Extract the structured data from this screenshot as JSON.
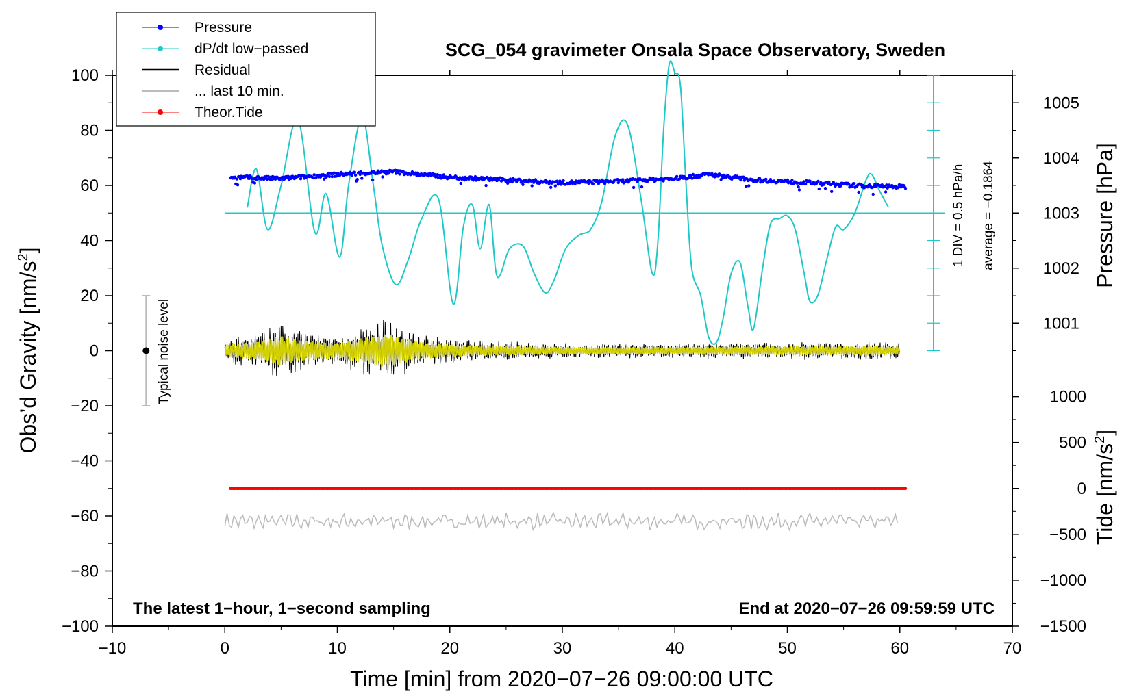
{
  "chart_data": {
    "type": "line",
    "title": "SCG_054 gravimeter Onsala Space Observatory, Sweden",
    "xlabel": "Time [min] from 2020−07−26 09:00:00 UTC",
    "ylabel_left": "Obs’d Gravity [nm/s",
    "ylabel_left_sup": "2",
    "ylabel_left_end": "]",
    "ylabel_right_pressure": "Pressure [hPa]",
    "ylabel_right_tide": "Tide [nm/s",
    "ylabel_right_tide_sup": "2",
    "ylabel_right_tide_end": "]",
    "xlim": [
      -10,
      70
    ],
    "ylim": [
      -100,
      100
    ],
    "x_ticks": [
      -10,
      0,
      10,
      20,
      30,
      40,
      50,
      60,
      70
    ],
    "x_tick_labels": [
      "−10",
      "0",
      "10",
      "20",
      "30",
      "40",
      "50",
      "60",
      "70"
    ],
    "y_ticks": [
      -100,
      -80,
      -60,
      -40,
      -20,
      0,
      20,
      40,
      60,
      80,
      100
    ],
    "y_tick_labels": [
      "−100",
      "−80",
      "−60",
      "−40",
      "−20",
      "0",
      "20",
      "40",
      "60",
      "80",
      "100"
    ],
    "pressure_axis": {
      "ticks": [
        1001,
        1002,
        1003,
        1004,
        1005
      ],
      "tick_labels": [
        "1001",
        "1002",
        "1003",
        "1004",
        "1005"
      ],
      "anchor_value": 1003,
      "anchor_gravity": 50,
      "hpa_per_gravity_unit": 0.05
    },
    "tide_axis": {
      "ticks": [
        -1500,
        -1000,
        -500,
        0,
        500,
        1000
      ],
      "tick_labels": [
        "−1500",
        "−1000",
        "−500",
        "0",
        "500",
        "1000"
      ],
      "anchor_value": 0,
      "anchor_gravity": -50,
      "nms2_per_gravity_unit": 30
    },
    "legend": [
      {
        "label": "Pressure",
        "color": "#0000ff",
        "marker": "dot"
      },
      {
        "label": "dP/dt low−passed",
        "color": "#20c8c8",
        "marker": "dot"
      },
      {
        "label": "Residual",
        "color": "#000000",
        "marker": "none"
      },
      {
        "label": "... last 10 min.",
        "color": "#bbbbbb",
        "marker": "none"
      },
      {
        "label": "Theor.Tide",
        "color": "#ff0000",
        "marker": "dot"
      }
    ],
    "series": [
      {
        "name": "dP/dt low-passed",
        "color": "#20c8c8",
        "x": [
          2,
          2.8,
          3.8,
          5,
          6.5,
          8,
          9,
          10.2,
          11,
          12.2,
          13.2,
          14,
          15.2,
          16.3,
          17.5,
          19,
          20.3,
          21.2,
          22,
          22.7,
          23.5,
          24.2,
          25.3,
          26.5,
          27.5,
          28.5,
          29.3,
          30.3,
          31.5,
          32.5,
          33.5,
          34.7,
          35.8,
          37,
          38,
          38.5,
          39,
          39.5,
          40,
          40.5,
          41,
          41.5,
          42.3,
          43,
          43.7,
          44.3,
          45,
          45.8,
          46.5,
          47,
          47.8,
          48.5,
          49.3,
          50,
          50.7,
          51.5,
          52,
          52.7,
          53.5,
          54.3,
          55,
          56,
          57,
          57.5,
          58.2,
          59
        ],
        "y": [
          52,
          66,
          44,
          60,
          84,
          43,
          57,
          34,
          60,
          85,
          60,
          38,
          24,
          33,
          48,
          55,
          17,
          45,
          53,
          37,
          53,
          27,
          37,
          38,
          28,
          21,
          26,
          37,
          42,
          44,
          54,
          78,
          82,
          55,
          28,
          40,
          80,
          104,
          101,
          96,
          60,
          30,
          20,
          5,
          3,
          12,
          28,
          32,
          16,
          8,
          30,
          46,
          48,
          49,
          44,
          28,
          18,
          20,
          33,
          45,
          44,
          50,
          62,
          64,
          58,
          52
        ]
      },
      {
        "name": "Pressure (gravity-axis units)",
        "color": "#0000ff",
        "x": [
          0.5,
          5,
          10,
          15,
          20,
          25,
          30,
          35,
          40,
          43,
          47,
          52,
          56,
          60.5
        ],
        "y": [
          63,
          62.5,
          64,
          65,
          63,
          62,
          61,
          61.5,
          62.5,
          64,
          62,
          61,
          60,
          59.5
        ]
      },
      {
        "name": "Residual",
        "color": "#000000",
        "x_range": [
          0,
          60
        ],
        "envelope_x": [
          0,
          3,
          5,
          6.5,
          8,
          10,
          12,
          14.5,
          16,
          18,
          22,
          30,
          40,
          50,
          56,
          57.5,
          60
        ],
        "envelope_y": [
          4,
          6,
          10,
          7,
          6,
          5,
          8,
          11,
          8,
          5,
          3.5,
          2.5,
          2.5,
          3,
          3,
          3.5,
          2.5
        ]
      },
      {
        "name": "Residual (smoothed)",
        "color": "#d2d000",
        "x_range": [
          0,
          60
        ]
      },
      {
        "name": "... last 10 min.",
        "color": "#bbbbbb",
        "x_range": [
          0,
          60
        ],
        "baseline": -62,
        "amplitude": 2.5
      },
      {
        "name": "Theor.Tide",
        "color": "#ff0000",
        "x": [
          0.5,
          60.5
        ],
        "tide_values": [
          0,
          0
        ],
        "gravity_values": [
          -50,
          -50
        ]
      }
    ],
    "annotations": {
      "noise_level_label": "Typical noise level",
      "noise_level_range": [
        -20,
        20
      ],
      "noise_level_x": -7,
      "pressure_scale_label": "1 DIV = 0.5 hPa/h",
      "pressure_average_label": "average = −0.1864",
      "footer_left": "The latest 1−hour, 1−second sampling",
      "footer_right": "End at 2020−07−26 09:59:59 UTC"
    }
  }
}
